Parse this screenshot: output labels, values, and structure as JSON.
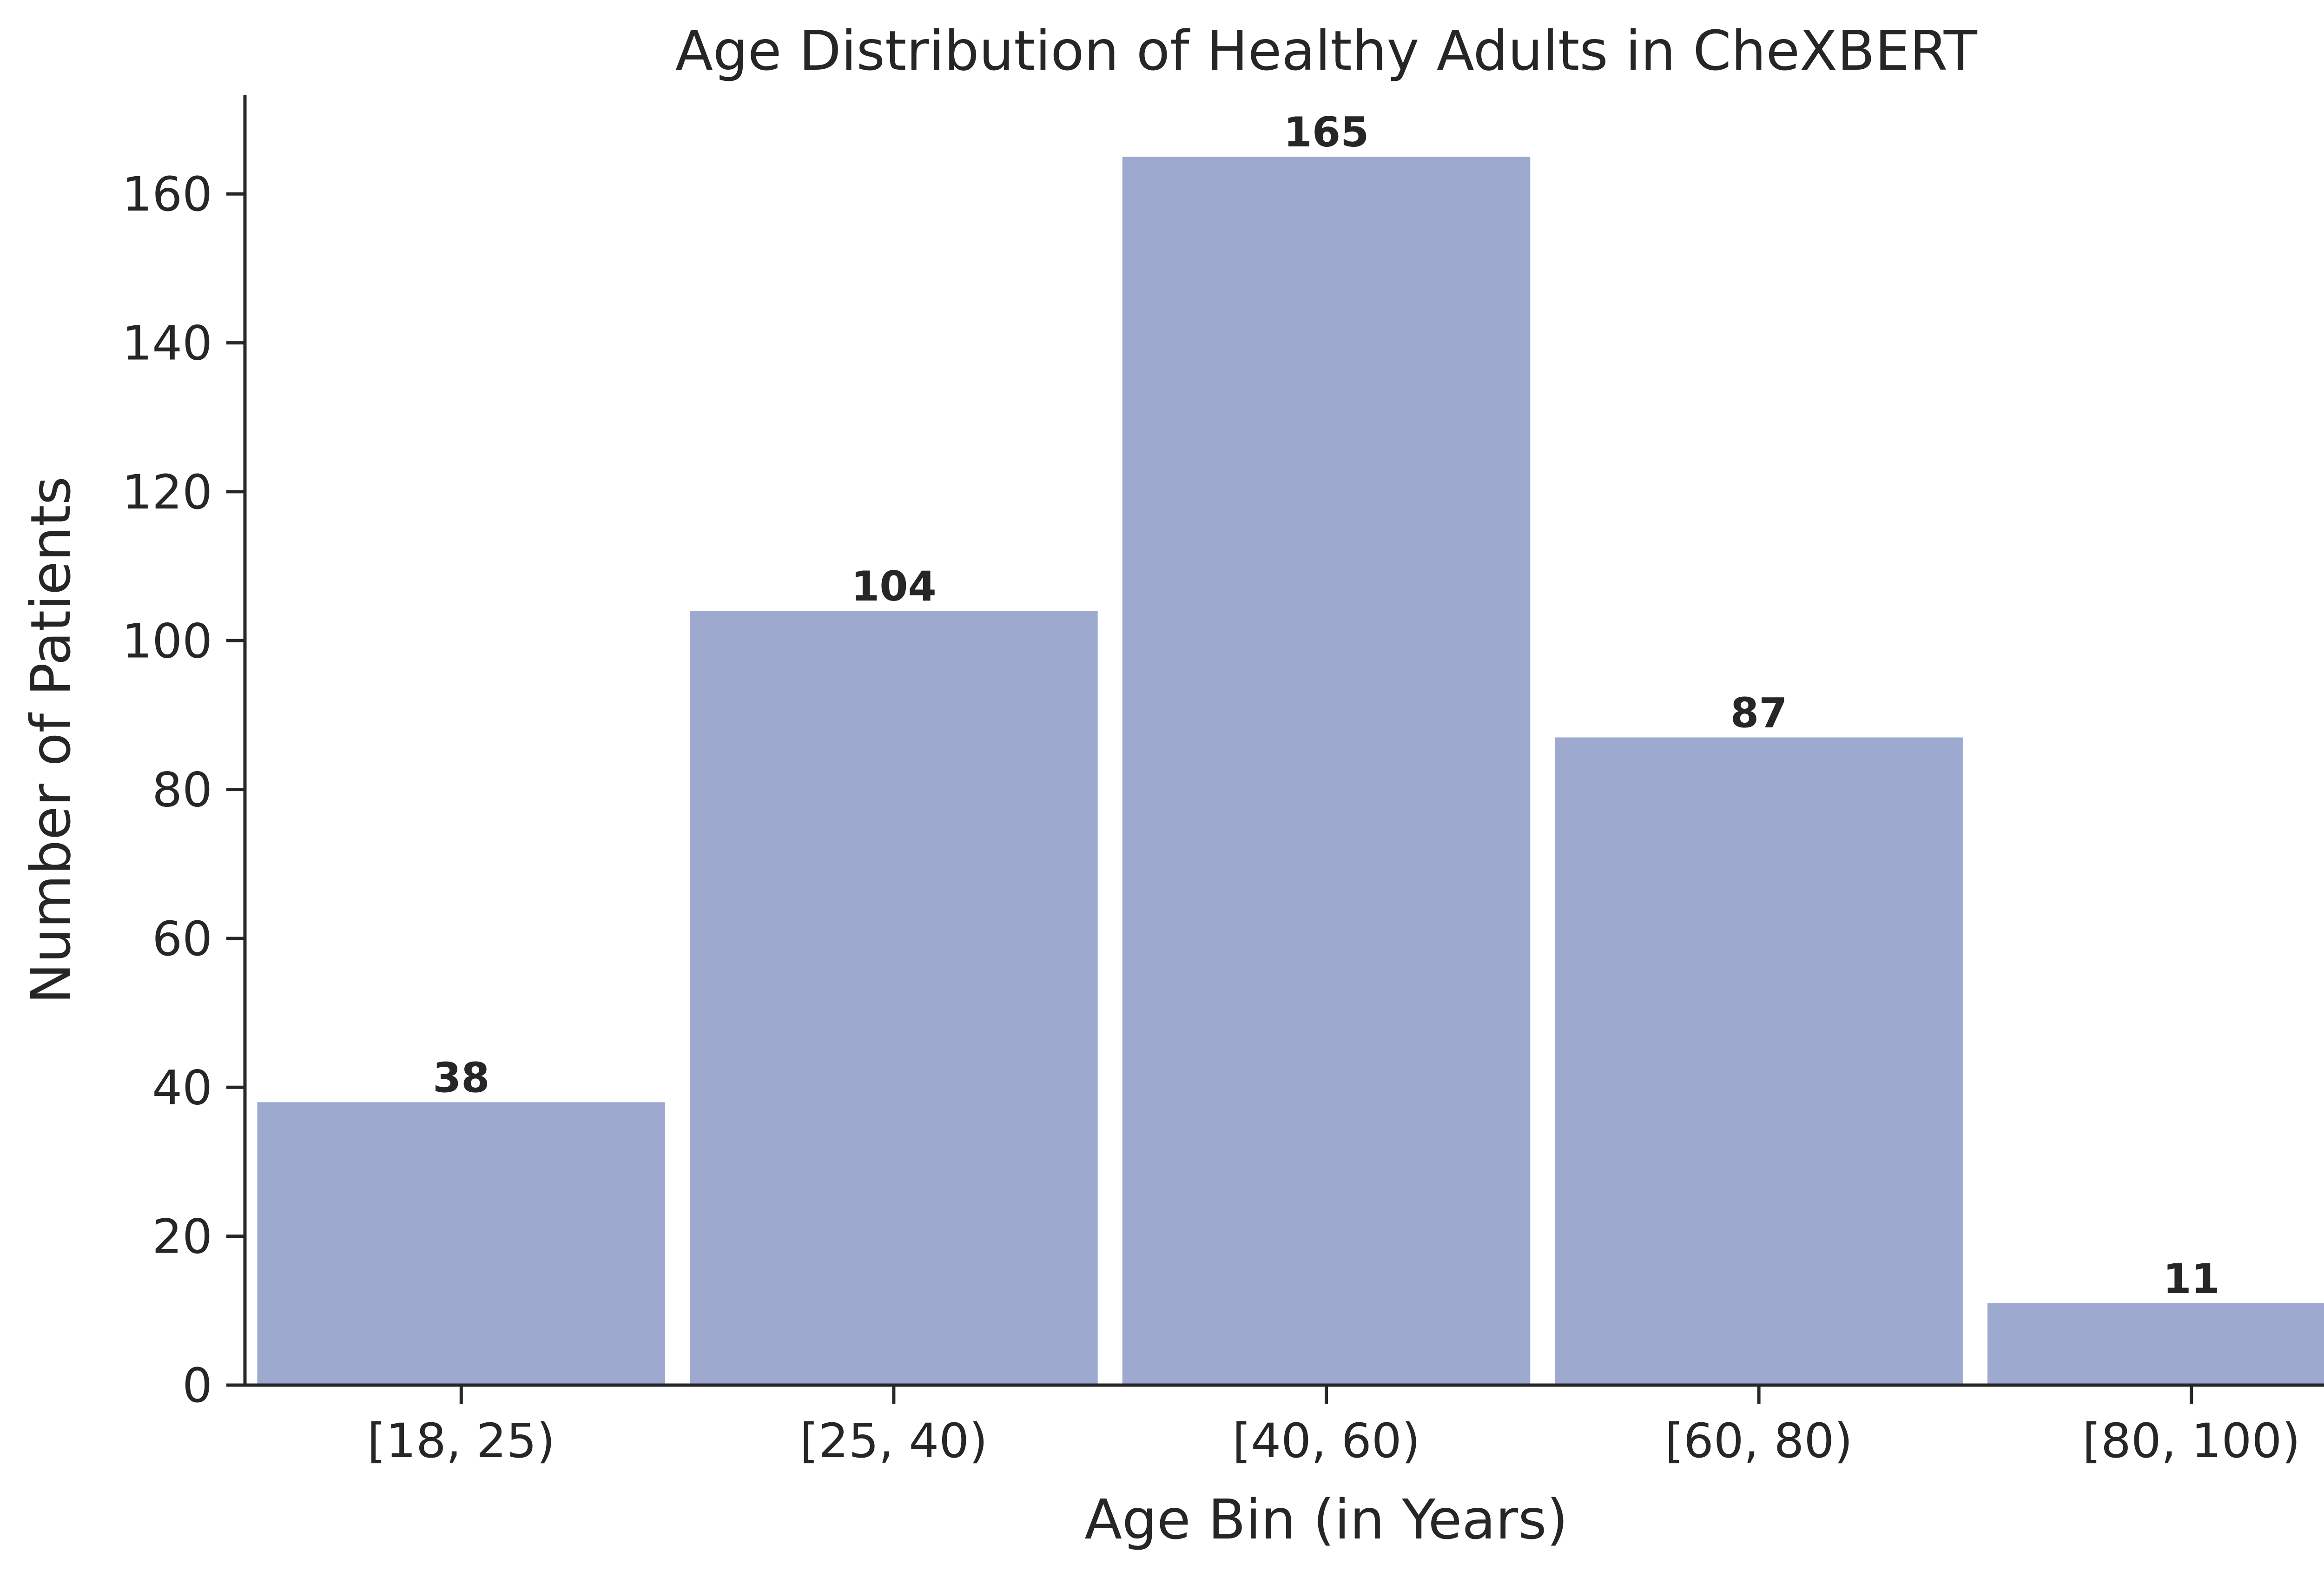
{
  "chart_data": {
    "type": "bar",
    "title": "Age Distribution of Healthy Adults in CheXBERT",
    "xlabel": "Age Bin (in Years)",
    "ylabel": "Number of Patients",
    "categories": [
      "[18, 25)",
      "[25, 40)",
      "[40, 60)",
      "[60, 80)",
      "[80, 100)"
    ],
    "values": [
      38,
      104,
      165,
      87,
      11
    ],
    "data_labels": [
      "38",
      "104",
      "165",
      "87",
      "11"
    ],
    "ylim": [
      0,
      173.25
    ],
    "yticks": [
      0,
      20,
      40,
      60,
      80,
      100,
      120,
      140,
      160
    ],
    "ytick_labels": [
      "0",
      "20",
      "40",
      "60",
      "80",
      "100",
      "120",
      "140",
      "160"
    ],
    "grid": false,
    "legend": "none",
    "bar_color": "#9da9ce",
    "spine_color": "#262626",
    "text_color": "#262626"
  }
}
